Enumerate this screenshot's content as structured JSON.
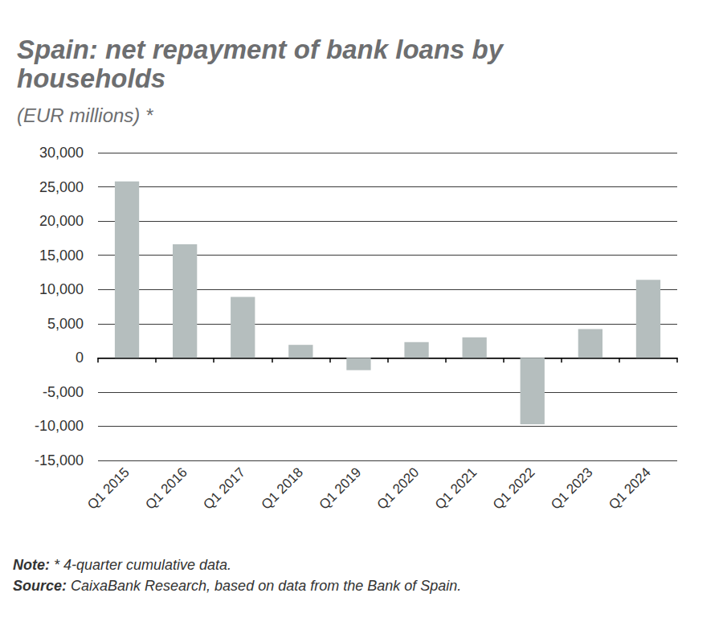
{
  "chart_data": {
    "type": "bar",
    "title": "Spain: net repayment of bank loans by households",
    "subtitle": "(EUR millions) *",
    "categories": [
      "Q1 2015",
      "Q1 2016",
      "Q1 2017",
      "Q1 2018",
      "Q1 2019",
      "Q1 2020",
      "Q1 2021",
      "Q1 2022",
      "Q1 2023",
      "Q1 2024"
    ],
    "values": [
      25800,
      16600,
      8900,
      1900,
      -1800,
      2300,
      3000,
      -9700,
      4200,
      11400
    ],
    "color": "#b5bebe",
    "ylim": [
      -15000,
      30000
    ],
    "yticks": [
      {
        "value": -15000,
        "label": "-15,000"
      },
      {
        "value": -10000,
        "label": "-10,000"
      },
      {
        "value": -5000,
        "label": "-5,000"
      },
      0,
      {
        "value": 5000,
        "label": "5,000"
      },
      {
        "value": 10000,
        "label": "10,000"
      },
      {
        "value": 15000,
        "label": "15,000"
      },
      {
        "value": 20000,
        "label": "20,000"
      },
      {
        "value": 25000,
        "label": "25,000"
      },
      {
        "value": 30000,
        "label": "30,000"
      }
    ],
    "grid": true,
    "note": "Note: * 4-quarter cumulative data.",
    "source": "Source: CaixaBank Research, based on data from the Bank of Spain."
  }
}
